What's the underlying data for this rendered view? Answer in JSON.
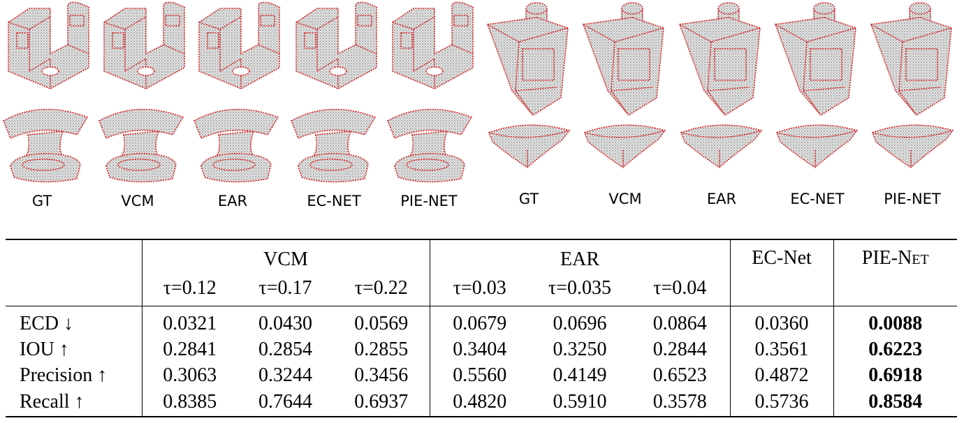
{
  "figure": {
    "left_labels": [
      "GT",
      "VCM",
      "EAR",
      "EC-NET",
      "PIE-NET"
    ],
    "right_labels": [
      "GT",
      "VCM",
      "EAR",
      "EC-NET",
      "PIE-NET"
    ]
  },
  "table": {
    "groups": [
      "VCM",
      "EAR",
      "EC-Net",
      "PIE-Net"
    ],
    "subheaders": [
      "τ=0.12",
      "τ=0.17",
      "τ=0.22",
      "τ=0.03",
      "τ=0.035",
      "τ=0.04"
    ],
    "rows": [
      [
        "ECD ↓",
        "0.0321",
        "0.0430",
        "0.0569",
        "0.0679",
        "0.0696",
        "0.0864",
        "0.0360",
        "0.0088"
      ],
      [
        "IOU ↑",
        "0.2841",
        "0.2854",
        "0.2855",
        "0.3404",
        "0.3250",
        "0.2844",
        "0.3561",
        "0.6223"
      ],
      [
        "Precision ↑",
        "0.3063",
        "0.3244",
        "0.3456",
        "0.5560",
        "0.4149",
        "0.6523",
        "0.4872",
        "0.6918"
      ],
      [
        "Recall ↑",
        "0.8385",
        "0.7644",
        "0.6937",
        "0.4820",
        "0.5910",
        "0.3578",
        "0.5736",
        "0.8584"
      ]
    ]
  }
}
